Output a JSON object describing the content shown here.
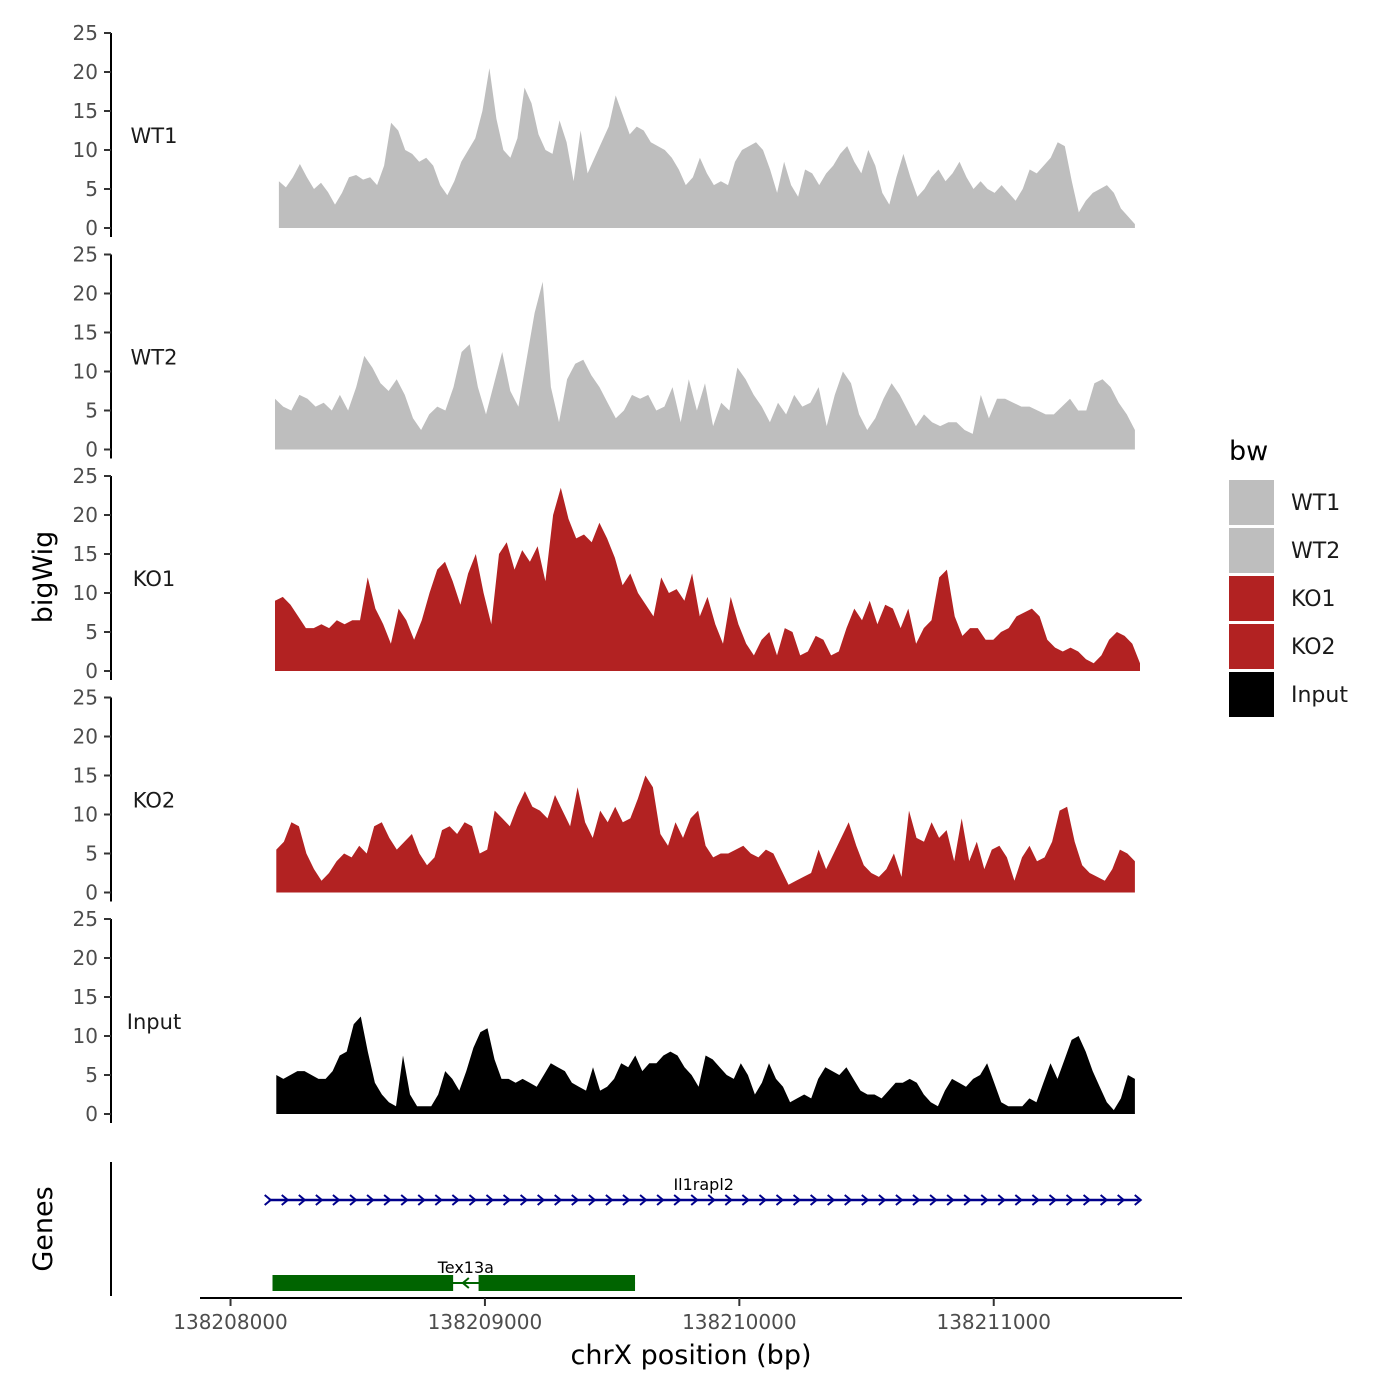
{
  "chart_data": {
    "type": "area",
    "title": "",
    "y_axis_title": "bigWig",
    "x_axis_title": "chrX position (bp)",
    "genes_axis_title": "Genes",
    "xlim": [
      138207880,
      138211740
    ],
    "x_ticks": [
      138208000,
      138209000,
      138210000,
      138211000
    ],
    "x_tick_labels": [
      "138208000",
      "138209000",
      "138210000",
      "138211000"
    ],
    "ylim": [
      0,
      25
    ],
    "y_ticks": [
      0,
      5,
      10,
      15,
      20,
      25
    ],
    "y_tick_labels": [
      "0",
      "5",
      "10",
      "15",
      "20",
      "25"
    ],
    "legend": {
      "title": "bw",
      "position": "right",
      "entries": [
        {
          "label": "WT1",
          "color": "#bebebe"
        },
        {
          "label": "WT2",
          "color": "#bebebe"
        },
        {
          "label": "KO1",
          "color": "#b22222"
        },
        {
          "label": "KO2",
          "color": "#b22222"
        },
        {
          "label": "Input",
          "color": "#000000"
        }
      ]
    },
    "series": [
      {
        "name": "WT1",
        "color": "#bebebe",
        "x_start": 138208190,
        "x_end": 138211555,
        "values": [
          6.0,
          5.2,
          6.5,
          8.2,
          6.5,
          5.0,
          5.8,
          4.6,
          3.0,
          4.5,
          6.5,
          6.8,
          6.2,
          6.5,
          5.5,
          8.0,
          13.5,
          12.5,
          10.0,
          9.5,
          8.5,
          9.0,
          8.0,
          5.5,
          4.2,
          6.0,
          8.5,
          10.0,
          11.5,
          15.0,
          20.5,
          14.0,
          10.0,
          9.0,
          11.5,
          18.0,
          16.0,
          12.0,
          10.0,
          9.5,
          13.8,
          11.0,
          6.0,
          12.5,
          7.0,
          9.0,
          11.0,
          13.0,
          17.0,
          14.5,
          12.0,
          13.0,
          12.5,
          11.0,
          10.5,
          10.0,
          9.0,
          7.5,
          5.5,
          6.5,
          9.0,
          7.0,
          5.5,
          6.0,
          5.5,
          8.5,
          10.0,
          10.5,
          11.0,
          10.0,
          7.5,
          4.5,
          8.5,
          5.5,
          4.0,
          7.5,
          7.0,
          5.5,
          7.0,
          8.0,
          9.5,
          10.5,
          8.5,
          7.0,
          10.0,
          8.0,
          4.5,
          3.0,
          6.5,
          9.5,
          6.5,
          4.0,
          5.0,
          6.5,
          7.5,
          6.0,
          7.0,
          8.5,
          6.5,
          5.0,
          6.0,
          5.0,
          4.5,
          5.5,
          4.5,
          3.5,
          5.0,
          7.5,
          7.0,
          8.0,
          9.0,
          11.0,
          10.5,
          6.0,
          2.0,
          3.5,
          4.5,
          5.0,
          5.5,
          4.5,
          2.5,
          1.5,
          0.5
        ]
      },
      {
        "name": "WT2",
        "color": "#bebebe",
        "x_start": 138208175,
        "x_end": 138211555,
        "values": [
          6.5,
          5.5,
          5.0,
          7.0,
          6.5,
          5.5,
          6.0,
          5.0,
          7.0,
          5.0,
          8.0,
          12.0,
          10.5,
          8.5,
          7.5,
          9.0,
          7.0,
          4.0,
          2.5,
          4.5,
          5.5,
          5.0,
          8.0,
          12.5,
          13.5,
          8.0,
          4.5,
          8.5,
          12.5,
          7.5,
          5.5,
          11.5,
          17.5,
          21.5,
          8.0,
          3.5,
          9.0,
          11.0,
          11.5,
          9.5,
          8.0,
          6.0,
          4.0,
          5.0,
          7.0,
          6.5,
          7.0,
          5.0,
          5.5,
          8.0,
          3.5,
          9.0,
          5.0,
          8.5,
          3.0,
          6.0,
          5.0,
          10.5,
          9.0,
          7.0,
          5.5,
          3.5,
          6.0,
          4.5,
          7.0,
          5.5,
          6.0,
          8.0,
          3.0,
          7.0,
          10.0,
          8.5,
          4.5,
          2.5,
          4.0,
          6.5,
          8.5,
          7.0,
          5.0,
          3.0,
          4.5,
          3.5,
          3.0,
          3.5,
          3.5,
          2.5,
          2.0,
          7.0,
          4.0,
          6.5,
          6.5,
          6.0,
          5.5,
          5.5,
          5.0,
          4.5,
          4.5,
          5.5,
          6.5,
          5.0,
          5.0,
          8.5,
          9.0,
          8.0,
          6.0,
          4.5,
          2.5
        ]
      },
      {
        "name": "KO1",
        "color": "#b22222",
        "x_start": 138208175,
        "x_end": 138211575,
        "values": [
          9.0,
          9.5,
          8.5,
          7.0,
          5.5,
          5.5,
          6.0,
          5.5,
          6.5,
          6.0,
          6.5,
          6.5,
          12.0,
          8.0,
          6.0,
          3.5,
          8.0,
          6.5,
          4.0,
          6.5,
          10.0,
          13.0,
          14.0,
          11.5,
          8.5,
          12.5,
          15.0,
          10.0,
          6.0,
          15.0,
          16.5,
          13.0,
          15.5,
          14.0,
          16.0,
          11.5,
          20.0,
          23.5,
          19.5,
          17.0,
          17.5,
          16.5,
          19.0,
          17.0,
          14.5,
          11.0,
          12.5,
          10.0,
          8.5,
          7.0,
          12.0,
          10.0,
          10.5,
          9.0,
          12.5,
          7.0,
          9.5,
          6.0,
          3.5,
          9.5,
          6.0,
          3.5,
          2.0,
          4.0,
          5.0,
          2.0,
          5.5,
          5.0,
          2.0,
          2.5,
          4.5,
          4.0,
          2.0,
          2.5,
          5.5,
          8.0,
          6.5,
          9.0,
          6.0,
          8.5,
          8.0,
          5.5,
          8.0,
          3.5,
          5.5,
          6.5,
          12.0,
          13.0,
          7.0,
          4.5,
          5.5,
          5.5,
          4.0,
          4.0,
          5.0,
          5.5,
          7.0,
          7.5,
          8.0,
          7.0,
          4.0,
          3.0,
          2.5,
          3.0,
          2.5,
          1.5,
          1.0,
          2.0,
          4.0,
          5.0,
          4.5,
          3.5,
          1.0
        ]
      },
      {
        "name": "KO2",
        "color": "#b22222",
        "x_start": 138208180,
        "x_end": 138211555,
        "values": [
          5.5,
          6.5,
          9.0,
          8.5,
          5.0,
          3.0,
          1.5,
          2.5,
          4.0,
          5.0,
          4.5,
          6.0,
          5.0,
          8.5,
          9.0,
          7.0,
          5.5,
          6.5,
          7.5,
          5.0,
          3.5,
          4.5,
          8.0,
          8.5,
          7.5,
          9.0,
          8.5,
          5.0,
          5.5,
          10.5,
          9.5,
          8.5,
          11.0,
          13.0,
          11.0,
          10.5,
          9.5,
          12.5,
          10.5,
          8.5,
          13.5,
          9.0,
          7.0,
          10.5,
          9.0,
          11.0,
          9.0,
          9.5,
          12.0,
          15.0,
          13.5,
          7.5,
          6.0,
          9.0,
          7.0,
          9.5,
          10.5,
          6.0,
          4.5,
          5.0,
          5.0,
          5.5,
          6.0,
          5.0,
          4.5,
          5.5,
          5.0,
          3.0,
          1.0,
          1.5,
          2.0,
          2.5,
          5.5,
          3.0,
          5.0,
          7.0,
          9.0,
          6.0,
          3.5,
          2.5,
          2.0,
          3.0,
          5.0,
          2.0,
          10.5,
          7.0,
          6.5,
          9.0,
          7.0,
          8.0,
          4.0,
          9.5,
          4.0,
          6.5,
          3.0,
          5.5,
          6.0,
          4.5,
          1.5,
          4.5,
          6.0,
          4.0,
          4.5,
          6.5,
          10.5,
          11.0,
          6.5,
          3.5,
          2.5,
          2.0,
          1.5,
          3.0,
          5.5,
          5.0,
          4.0
        ]
      },
      {
        "name": "Input",
        "color": "#000000",
        "x_start": 138208180,
        "x_end": 138211555,
        "values": [
          5.0,
          4.5,
          5.0,
          5.5,
          5.5,
          5.0,
          4.5,
          4.5,
          5.5,
          7.5,
          8.0,
          11.5,
          12.5,
          8.0,
          4.0,
          2.5,
          1.5,
          1.0,
          7.5,
          2.5,
          1.0,
          1.0,
          1.0,
          2.5,
          5.5,
          4.5,
          3.0,
          5.5,
          8.5,
          10.5,
          11.0,
          7.0,
          4.5,
          4.5,
          4.0,
          4.5,
          4.0,
          3.5,
          5.0,
          6.5,
          6.0,
          5.5,
          4.0,
          3.5,
          3.0,
          6.0,
          3.0,
          3.5,
          4.5,
          6.5,
          6.0,
          7.5,
          5.5,
          6.5,
          6.5,
          7.5,
          8.0,
          7.5,
          6.0,
          5.0,
          3.5,
          7.5,
          7.0,
          6.0,
          5.0,
          4.5,
          6.5,
          5.0,
          2.5,
          4.0,
          6.5,
          4.5,
          3.5,
          1.5,
          2.0,
          2.5,
          2.0,
          4.5,
          6.0,
          5.5,
          5.0,
          6.0,
          4.5,
          3.0,
          2.5,
          2.5,
          2.0,
          3.0,
          4.0,
          4.0,
          4.5,
          4.0,
          2.5,
          1.5,
          1.0,
          3.0,
          4.5,
          4.0,
          3.5,
          4.5,
          5.0,
          6.5,
          4.0,
          1.5,
          1.0,
          1.0,
          1.0,
          2.0,
          1.5,
          4.0,
          6.5,
          4.5,
          7.0,
          9.5,
          10.0,
          8.0,
          5.5,
          3.5,
          1.5,
          0.5,
          2.0,
          5.0,
          4.5
        ]
      }
    ],
    "genes": [
      {
        "name": "Il1rapl2",
        "x_start": 138208150,
        "x_end": 138211570,
        "strand": "+",
        "color": "#00008b",
        "type": "line"
      },
      {
        "name": "Tex13a",
        "color": "#006400",
        "strand": "-",
        "type": "exons",
        "exons": [
          [
            138208165,
            138208875
          ],
          [
            138208975,
            138209590
          ]
        ]
      }
    ]
  }
}
